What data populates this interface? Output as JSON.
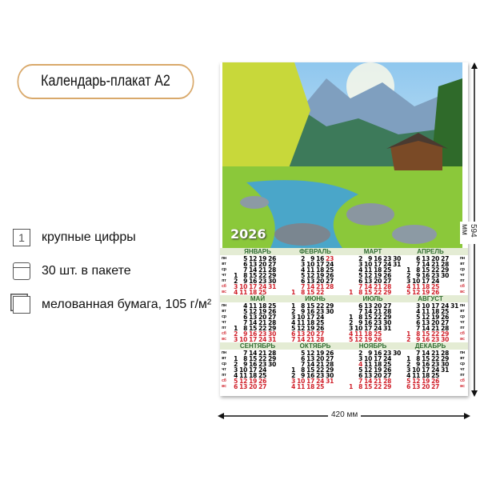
{
  "title": "Календарь-плакат А2",
  "features": [
    {
      "icon": "large-digits-icon",
      "label": "крупные цифры"
    },
    {
      "icon": "package-icon",
      "label": "30 шт. в пакете"
    },
    {
      "icon": "paper-sheets-icon",
      "label": "мелованная бумага, 105 г/м²"
    }
  ],
  "poster": {
    "year": "2026",
    "weekdays": [
      "пн",
      "вт",
      "ср",
      "чт",
      "пт",
      "сб",
      "вс"
    ],
    "months": [
      "ЯНВАРЬ",
      "ФЕВРАЛЬ",
      "МАРТ",
      "АПРЕЛЬ",
      "МАЙ",
      "ИЮНЬ",
      "ИЮЛЬ",
      "АВГУСТ",
      "СЕНТЯБРЬ",
      "ОКТЯБРЬ",
      "НОЯБРЬ",
      "ДЕКАБРЬ"
    ],
    "holidays": [
      "2-23",
      "3-8",
      "11-4"
    ],
    "weekend_color": "#d0202a",
    "month_color": "#2e6b2e"
  },
  "dimensions": {
    "width": "420 мм",
    "height": "594 мм"
  }
}
